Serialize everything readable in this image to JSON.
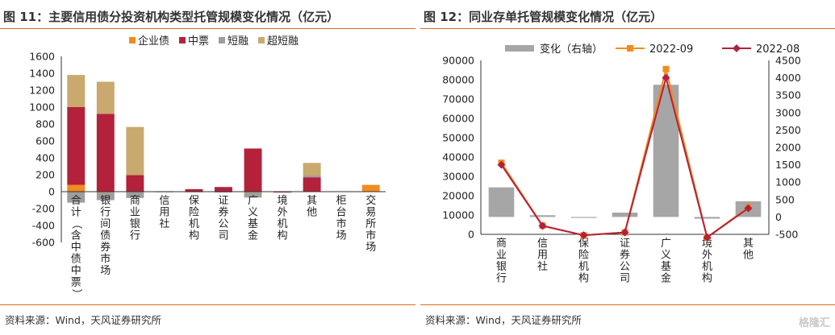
{
  "left": {
    "title": "图 11：主要信用债分投资机构类型托管规模变化情况（亿元）",
    "source": "资料来源：Wind，天风证券研究所",
    "chart_data": {
      "type": "bar",
      "stacked": true,
      "categories": [
        "合计（含中债中票）",
        "银行间债券市场",
        "商业银行",
        "信用社",
        "保险机构",
        "证券公司",
        "广义基金",
        "境外机构",
        "其他",
        "柜台市场",
        "交易所市场"
      ],
      "series": [
        {
          "name": "企业债",
          "color": "#f28c1e",
          "values": [
            80,
            -10,
            -5,
            0,
            0,
            0,
            -10,
            0,
            0,
            0,
            80
          ]
        },
        {
          "name": "中票",
          "color": "#b3213b",
          "values": [
            920,
            920,
            195,
            5,
            30,
            55,
            510,
            -10,
            170,
            0,
            0
          ]
        },
        {
          "name": "短融",
          "color": "#9e9e9e",
          "values": [
            -130,
            -90,
            -70,
            -3,
            -5,
            -10,
            -60,
            0,
            20,
            0,
            0
          ]
        },
        {
          "name": "超短融",
          "color": "#c9a96e",
          "values": [
            380,
            380,
            570,
            0,
            0,
            0,
            0,
            0,
            150,
            0,
            0
          ]
        }
      ],
      "ylim": [
        -600,
        1600
      ],
      "yticks": [
        -600,
        -400,
        -200,
        0,
        200,
        400,
        600,
        800,
        1000,
        1200,
        1400,
        1600
      ],
      "legend_position": "top"
    }
  },
  "right": {
    "title": "图 12：同业存单托管规模变化情况（亿元）",
    "source": "资料来源：Wind，天风证券研究所",
    "chart_data": {
      "type": "bar+line",
      "categories": [
        "商业银行",
        "信用社",
        "保险机构",
        "证券公司",
        "广义基金",
        "境外机构",
        "其他"
      ],
      "bar_series": {
        "name": "变化（右轴）",
        "color": "#a6a6a6",
        "values": [
          850,
          50,
          -25,
          125,
          3800,
          -50,
          450
        ],
        "axis": "right"
      },
      "line_series": [
        {
          "name": "2022-09",
          "color": "#f08c1e",
          "marker": "square",
          "values": [
            37000,
            4500,
            -500,
            1000,
            85500,
            -1500,
            14000
          ],
          "axis": "left"
        },
        {
          "name": "2022-08",
          "color": "#b3213b",
          "marker": "diamond",
          "values": [
            36000,
            4400,
            -450,
            1000,
            81000,
            -1600,
            13500
          ],
          "axis": "left"
        }
      ],
      "ylim_left": [
        0,
        90000
      ],
      "yticks_left": [
        0,
        10000,
        20000,
        30000,
        40000,
        50000,
        60000,
        70000,
        80000,
        90000
      ],
      "ylim_right": [
        -500,
        4500
      ],
      "yticks_right": [
        -500,
        0,
        500,
        1000,
        1500,
        2000,
        2500,
        3000,
        3500,
        4000,
        4500
      ],
      "legend_position": "top"
    }
  },
  "watermark": "格隆汇"
}
